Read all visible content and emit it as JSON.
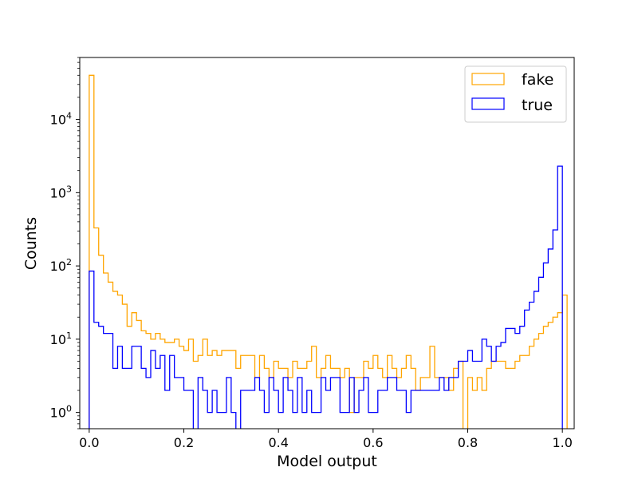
{
  "chart_data": {
    "type": "histogram",
    "title": "",
    "xlabel": "Model output",
    "ylabel": "Counts",
    "xlim": [
      -0.02,
      1.025
    ],
    "ylim": [
      0.6,
      70000
    ],
    "yscale": "log",
    "grid": false,
    "legend": "top-right",
    "bin_start": 0.0,
    "bin_width": 0.01,
    "x_ticks": [
      {
        "value": 0.0,
        "label": "0.0"
      },
      {
        "value": 0.2,
        "label": "0.2"
      },
      {
        "value": 0.4,
        "label": "0.4"
      },
      {
        "value": 0.6,
        "label": "0.6"
      },
      {
        "value": 0.8,
        "label": "0.8"
      },
      {
        "value": 1.0,
        "label": "1.0"
      }
    ],
    "y_ticks": [
      {
        "value": 1,
        "base": "10",
        "exp": "0"
      },
      {
        "value": 10,
        "base": "10",
        "exp": "1"
      },
      {
        "value": 100,
        "base": "10",
        "exp": "2"
      },
      {
        "value": 1000,
        "base": "10",
        "exp": "3"
      },
      {
        "value": 10000,
        "base": "10",
        "exp": "4"
      }
    ],
    "series": [
      {
        "name": "fake",
        "color": "#ffa500",
        "values": [
          40000,
          330,
          140,
          80,
          60,
          45,
          40,
          30,
          15,
          23,
          18,
          13,
          12,
          10,
          12,
          10,
          9,
          9,
          10,
          8,
          7,
          10,
          5,
          6,
          10,
          6,
          7,
          6,
          7,
          7,
          7,
          4,
          6,
          6,
          6,
          3,
          6,
          4,
          3,
          5,
          4,
          4,
          3,
          5,
          4,
          4,
          5,
          8,
          3,
          4,
          6,
          4,
          4,
          3,
          4,
          1,
          3,
          3,
          5,
          4,
          6,
          4,
          3,
          6,
          4,
          3,
          4,
          6,
          4,
          2,
          3,
          3,
          8,
          3,
          3,
          3,
          2,
          4,
          5,
          0,
          3,
          2,
          3,
          2,
          4,
          5,
          5,
          5,
          4,
          4,
          5,
          6,
          6,
          8,
          10,
          12,
          15,
          17,
          20,
          23,
          40
        ]
      },
      {
        "name": "true",
        "color": "#0000ff",
        "values": [
          85,
          17,
          15,
          12,
          12,
          4,
          8,
          4,
          4,
          8,
          8,
          4,
          3,
          7,
          4,
          6,
          2,
          6,
          3,
          3,
          2,
          2,
          0,
          3,
          2,
          1,
          2,
          1,
          1,
          3,
          1,
          0,
          2,
          2,
          2,
          3,
          2,
          1,
          3,
          2,
          1,
          3,
          2,
          1,
          3,
          1,
          2,
          1,
          1,
          3,
          2,
          3,
          3,
          1,
          1,
          3,
          1,
          2,
          3,
          1,
          1,
          2,
          2,
          3,
          3,
          2,
          2,
          1,
          2,
          2,
          2,
          2,
          2,
          2,
          3,
          2,
          3,
          3,
          5,
          5,
          7,
          5,
          5,
          10,
          8,
          5,
          8,
          9,
          14,
          14,
          12,
          15,
          25,
          32,
          45,
          70,
          110,
          170,
          310,
          2300,
          0
        ]
      }
    ]
  }
}
